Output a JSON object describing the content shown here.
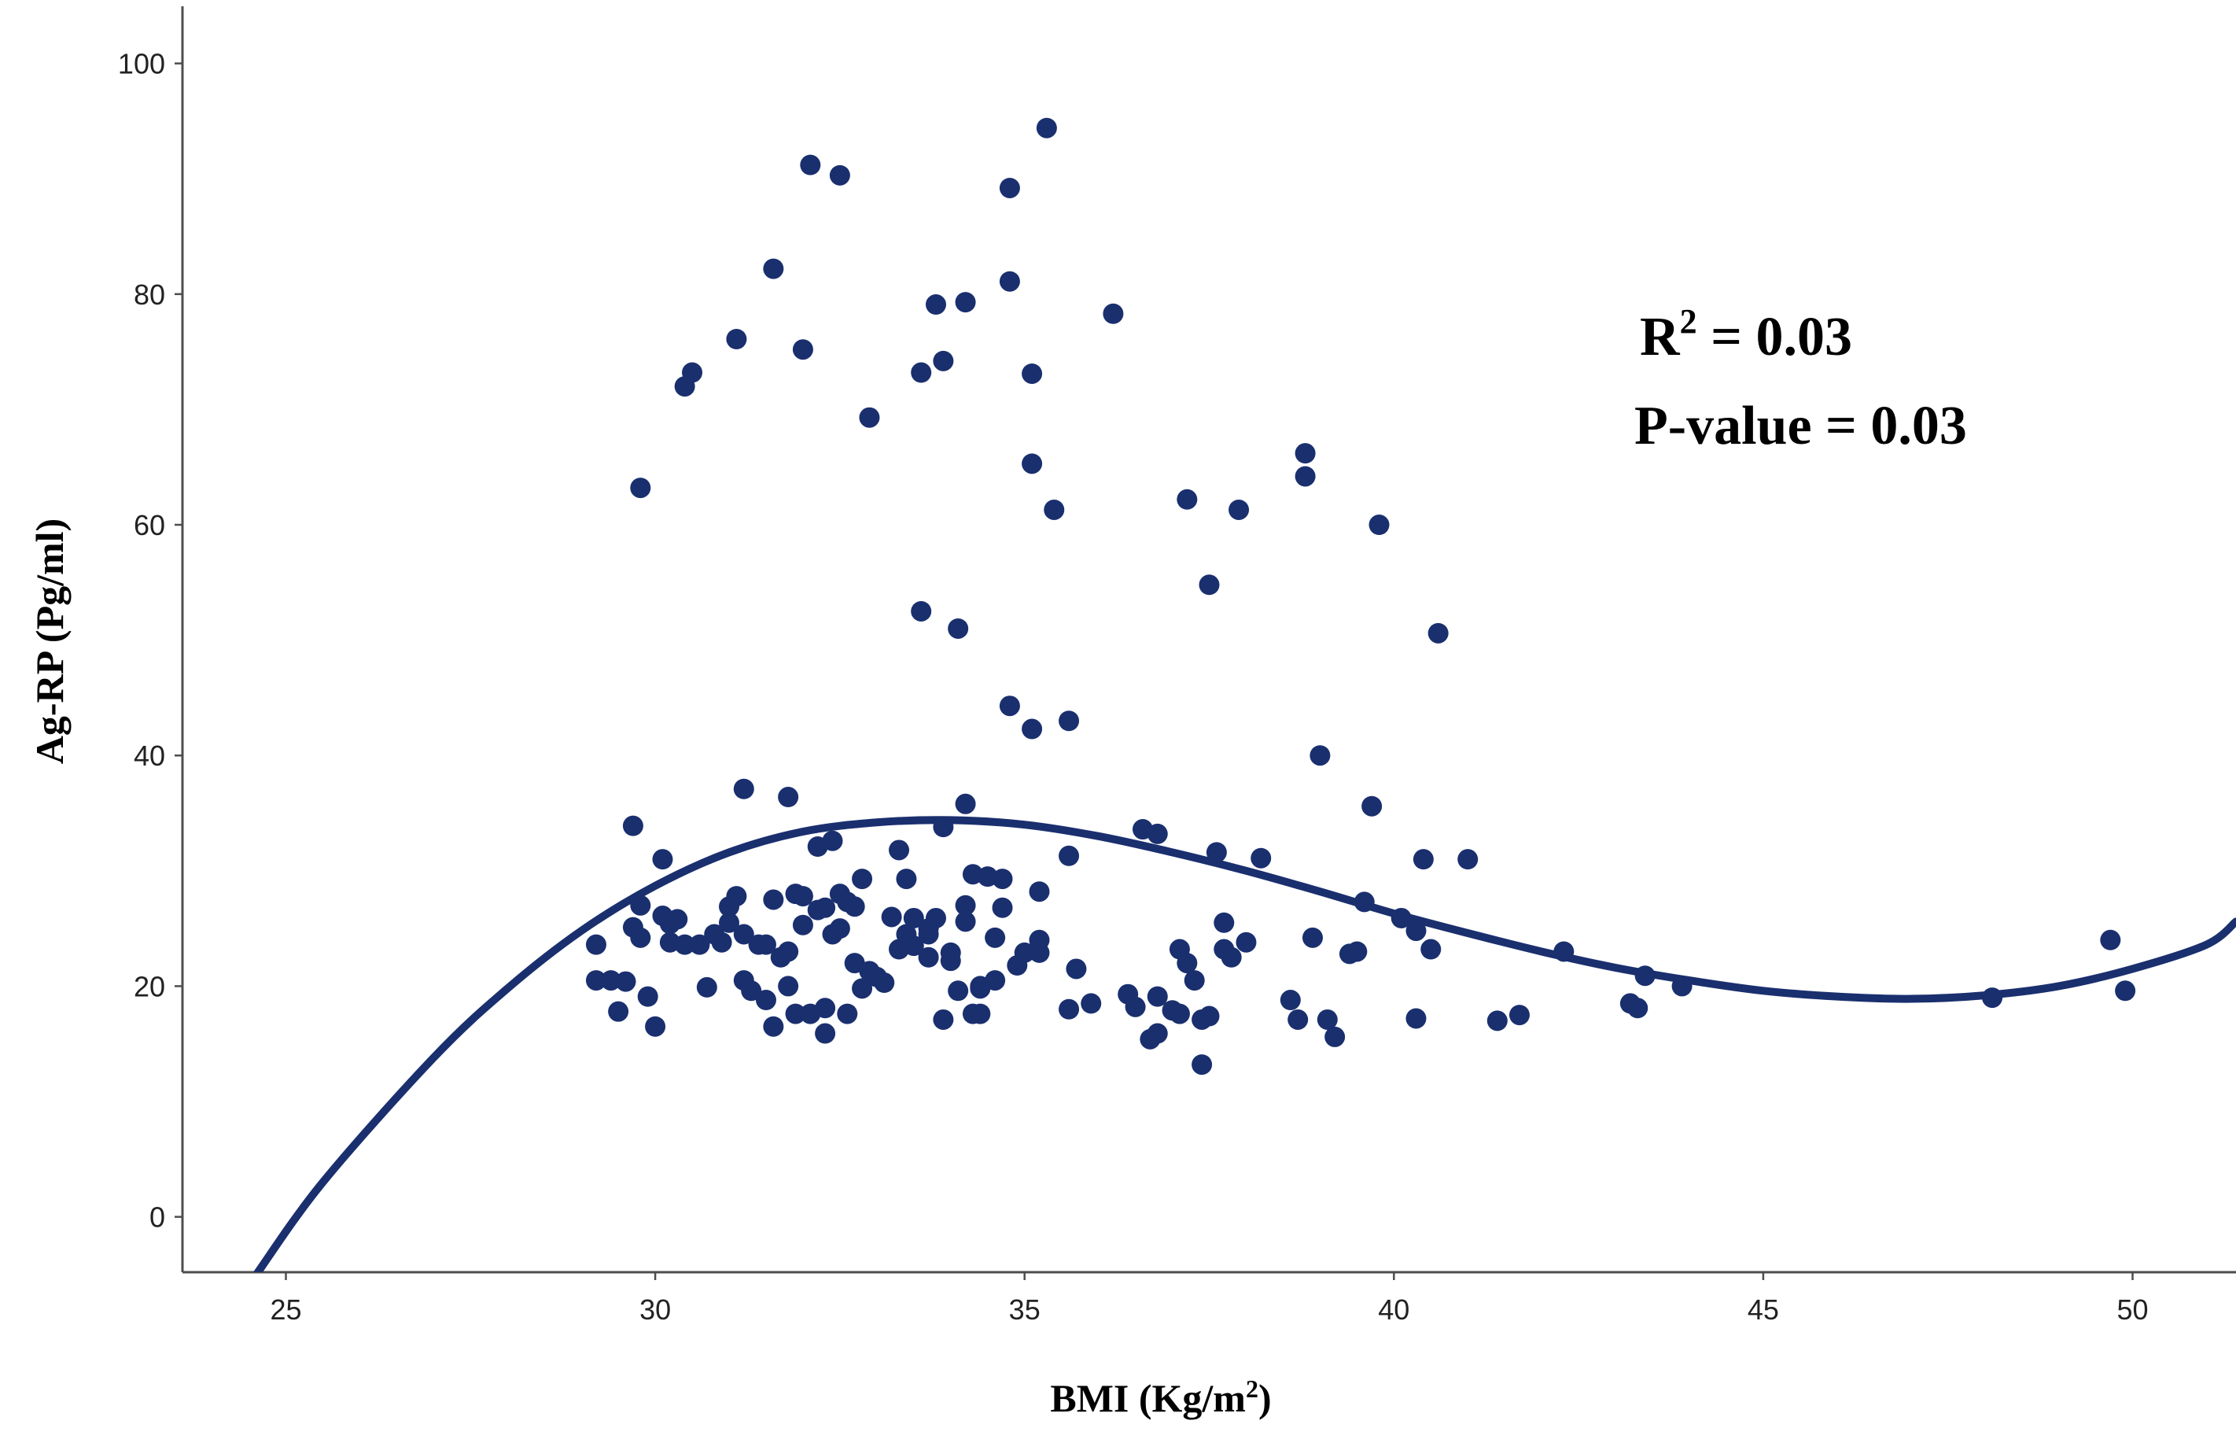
{
  "chart_data": {
    "type": "scatter",
    "xlabel": {
      "before": "BMI (Kg/m",
      "sup": "2",
      "after": ")"
    },
    "ylabel": "Ag-RP (Pg/ml)",
    "xlim": [
      23.6,
      51.4
    ],
    "ylim": [
      -4.8,
      105.5
    ],
    "xticks": [
      25,
      30,
      35,
      40,
      45,
      50
    ],
    "yticks": [
      0,
      20,
      40,
      60,
      80,
      100
    ],
    "grid": false,
    "legend": "none",
    "colors": {
      "points": "#1a2f6e",
      "fit_line": "#1a2f6e",
      "axis": "#4d4d4d"
    },
    "annotations": {
      "r2": {
        "label": "R",
        "sup": "2",
        "value": " = 0.03"
      },
      "p_value": "P-value = 0.03"
    },
    "fit_line": {
      "kind": "cubic",
      "points": [
        [
          24.6,
          -5.0
        ],
        [
          25.5,
          3.0
        ],
        [
          27,
          13.8
        ],
        [
          28,
          19.8
        ],
        [
          29,
          24.8
        ],
        [
          30,
          28.7
        ],
        [
          31,
          31.6
        ],
        [
          32,
          33.4
        ],
        [
          33,
          34.2
        ],
        [
          34,
          34.4
        ],
        [
          35,
          34.0
        ],
        [
          36,
          33.0
        ],
        [
          37,
          31.6
        ],
        [
          38,
          30.0
        ],
        [
          39,
          28.2
        ],
        [
          40,
          26.3
        ],
        [
          41,
          24.6
        ],
        [
          42,
          23.0
        ],
        [
          43,
          21.6
        ],
        [
          44,
          20.5
        ],
        [
          45,
          19.6
        ],
        [
          46,
          19.1
        ],
        [
          47,
          18.9
        ],
        [
          48,
          19.2
        ],
        [
          49,
          20.0
        ],
        [
          50,
          21.5
        ],
        [
          51,
          23.6
        ],
        [
          51.4,
          25.6
        ]
      ]
    },
    "points": [
      [
        29.2,
        23.6
      ],
      [
        29.2,
        20.5
      ],
      [
        29.4,
        20.5
      ],
      [
        29.5,
        17.8
      ],
      [
        29.6,
        20.4
      ],
      [
        29.7,
        25.1
      ],
      [
        29.7,
        33.9
      ],
      [
        29.8,
        24.2
      ],
      [
        29.8,
        27.0
      ],
      [
        29.8,
        63.2
      ],
      [
        29.9,
        19.1
      ],
      [
        30.0,
        16.5
      ],
      [
        30.1,
        26.1
      ],
      [
        30.1,
        31.0
      ],
      [
        30.2,
        25.4
      ],
      [
        30.2,
        23.8
      ],
      [
        30.3,
        25.8
      ],
      [
        30.4,
        72.0
      ],
      [
        30.4,
        23.6
      ],
      [
        30.5,
        73.2
      ],
      [
        30.6,
        23.6
      ],
      [
        30.7,
        19.9
      ],
      [
        30.8,
        24.5
      ],
      [
        30.9,
        23.8
      ],
      [
        31.0,
        26.9
      ],
      [
        31.0,
        25.5
      ],
      [
        31.1,
        27.8
      ],
      [
        31.1,
        76.1
      ],
      [
        31.2,
        37.1
      ],
      [
        31.2,
        20.5
      ],
      [
        31.2,
        24.5
      ],
      [
        31.3,
        19.6
      ],
      [
        31.4,
        23.6
      ],
      [
        31.5,
        18.8
      ],
      [
        31.5,
        23.6
      ],
      [
        31.6,
        82.2
      ],
      [
        31.6,
        27.5
      ],
      [
        31.6,
        16.5
      ],
      [
        31.7,
        22.5
      ],
      [
        31.8,
        23.0
      ],
      [
        31.8,
        36.4
      ],
      [
        31.8,
        20.0
      ],
      [
        31.9,
        28.0
      ],
      [
        31.9,
        17.6
      ],
      [
        32.0,
        27.8
      ],
      [
        32.0,
        75.2
      ],
      [
        32.0,
        25.3
      ],
      [
        32.1,
        17.6
      ],
      [
        32.1,
        91.2
      ],
      [
        32.2,
        26.6
      ],
      [
        32.2,
        32.1
      ],
      [
        32.3,
        18.1
      ],
      [
        32.3,
        15.9
      ],
      [
        32.3,
        26.8
      ],
      [
        32.4,
        24.5
      ],
      [
        32.4,
        32.6
      ],
      [
        32.5,
        28.0
      ],
      [
        32.5,
        90.3
      ],
      [
        32.5,
        25.0
      ],
      [
        32.6,
        27.3
      ],
      [
        32.6,
        17.6
      ],
      [
        32.7,
        22.0
      ],
      [
        32.7,
        26.9
      ],
      [
        32.8,
        29.3
      ],
      [
        32.8,
        19.8
      ],
      [
        32.9,
        69.3
      ],
      [
        32.9,
        21.3
      ],
      [
        33.0,
        20.8
      ],
      [
        33.1,
        20.3
      ],
      [
        33.2,
        26.0
      ],
      [
        33.3,
        23.2
      ],
      [
        33.3,
        31.8
      ],
      [
        33.4,
        24.5
      ],
      [
        33.4,
        29.3
      ],
      [
        33.5,
        25.9
      ],
      [
        33.5,
        23.5
      ],
      [
        33.6,
        73.2
      ],
      [
        33.6,
        52.5
      ],
      [
        33.7,
        25.0
      ],
      [
        33.7,
        22.5
      ],
      [
        33.7,
        24.5
      ],
      [
        33.8,
        79.1
      ],
      [
        33.8,
        25.9
      ],
      [
        33.9,
        74.2
      ],
      [
        33.9,
        33.8
      ],
      [
        33.9,
        17.1
      ],
      [
        34.0,
        22.2
      ],
      [
        34.0,
        22.9
      ],
      [
        34.1,
        51.0
      ],
      [
        34.1,
        19.6
      ],
      [
        34.2,
        27.0
      ],
      [
        34.2,
        25.6
      ],
      [
        34.2,
        35.8
      ],
      [
        34.2,
        79.3
      ],
      [
        34.3,
        29.7
      ],
      [
        34.3,
        17.6
      ],
      [
        34.4,
        19.8
      ],
      [
        34.4,
        20.0
      ],
      [
        34.4,
        17.6
      ],
      [
        34.5,
        29.5
      ],
      [
        34.6,
        20.5
      ],
      [
        34.6,
        24.2
      ],
      [
        34.7,
        29.3
      ],
      [
        34.7,
        26.8
      ],
      [
        34.8,
        44.3
      ],
      [
        34.8,
        89.2
      ],
      [
        34.8,
        81.1
      ],
      [
        34.9,
        21.8
      ],
      [
        35.0,
        22.9
      ],
      [
        35.1,
        42.3
      ],
      [
        35.1,
        73.1
      ],
      [
        35.1,
        65.3
      ],
      [
        35.2,
        24.0
      ],
      [
        35.2,
        28.2
      ],
      [
        35.2,
        22.9
      ],
      [
        35.3,
        94.4
      ],
      [
        35.4,
        61.3
      ],
      [
        35.6,
        43.0
      ],
      [
        35.6,
        18.0
      ],
      [
        35.6,
        31.3
      ],
      [
        35.7,
        21.5
      ],
      [
        35.9,
        18.5
      ],
      [
        36.2,
        78.3
      ],
      [
        36.4,
        19.3
      ],
      [
        36.5,
        18.2
      ],
      [
        36.6,
        33.6
      ],
      [
        36.7,
        15.4
      ],
      [
        36.8,
        33.2
      ],
      [
        36.8,
        15.9
      ],
      [
        36.8,
        19.1
      ],
      [
        37.0,
        17.9
      ],
      [
        37.1,
        23.2
      ],
      [
        37.1,
        17.6
      ],
      [
        37.2,
        22.0
      ],
      [
        37.2,
        62.2
      ],
      [
        37.3,
        20.5
      ],
      [
        37.4,
        13.2
      ],
      [
        37.4,
        17.1
      ],
      [
        37.5,
        54.8
      ],
      [
        37.5,
        17.4
      ],
      [
        37.6,
        31.6
      ],
      [
        37.7,
        25.5
      ],
      [
        37.7,
        23.2
      ],
      [
        37.8,
        22.5
      ],
      [
        37.9,
        61.3
      ],
      [
        38.0,
        23.8
      ],
      [
        38.2,
        31.1
      ],
      [
        38.6,
        18.8
      ],
      [
        38.7,
        17.1
      ],
      [
        38.8,
        64.2
      ],
      [
        38.8,
        66.2
      ],
      [
        38.9,
        24.2
      ],
      [
        39.0,
        40.0
      ],
      [
        39.1,
        17.1
      ],
      [
        39.2,
        15.6
      ],
      [
        39.4,
        22.8
      ],
      [
        39.5,
        23.0
      ],
      [
        39.6,
        27.3
      ],
      [
        39.7,
        35.6
      ],
      [
        39.8,
        60.0
      ],
      [
        40.1,
        25.9
      ],
      [
        40.3,
        17.2
      ],
      [
        40.3,
        24.8
      ],
      [
        40.4,
        31.0
      ],
      [
        40.5,
        23.2
      ],
      [
        40.6,
        50.6
      ],
      [
        41.0,
        31.0
      ],
      [
        41.4,
        17.0
      ],
      [
        41.7,
        17.5
      ],
      [
        42.3,
        23.0
      ],
      [
        43.2,
        18.5
      ],
      [
        43.3,
        18.1
      ],
      [
        43.4,
        20.9
      ],
      [
        43.9,
        20.0
      ],
      [
        48.1,
        19.0
      ],
      [
        49.7,
        24.0
      ],
      [
        49.9,
        19.6
      ]
    ]
  }
}
